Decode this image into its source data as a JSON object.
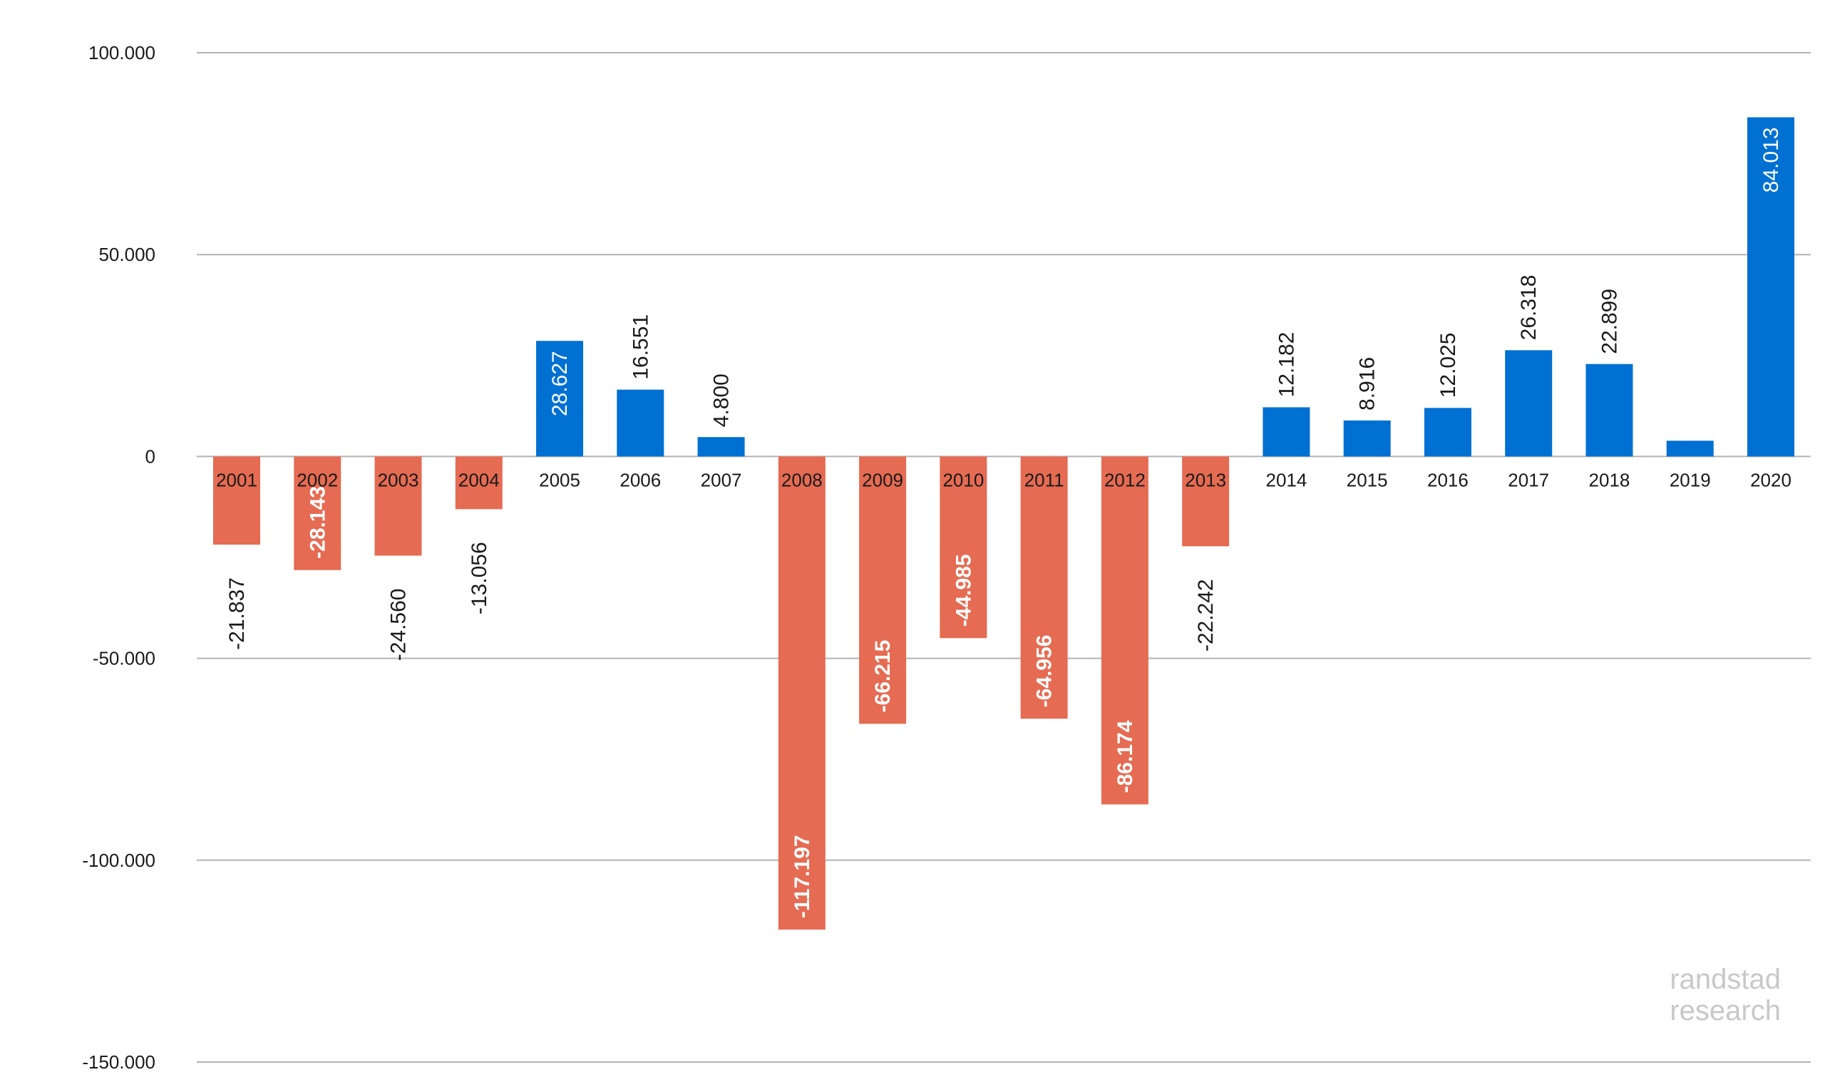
{
  "chart_data": {
    "type": "bar",
    "categories": [
      "2001",
      "2002",
      "2003",
      "2004",
      "2005",
      "2006",
      "2007",
      "2008",
      "2009",
      "2010",
      "2011",
      "2012",
      "2013",
      "2014",
      "2015",
      "2016",
      "2017",
      "2018",
      "2019",
      "2020"
    ],
    "values": [
      -21837,
      -28143,
      -24560,
      -13056,
      28627,
      16551,
      4800,
      -117197,
      -66215,
      -44985,
      -64956,
      -86174,
      -22242,
      12182,
      8916,
      12025,
      26318,
      22899,
      3900,
      84013
    ],
    "data_labels": [
      "-21.837",
      "-28.143",
      "-24.560",
      "-13.056",
      "28.627",
      "16.551",
      "4.800",
      "-117.197",
      "-66.215",
      "-44.985",
      "-64.956",
      "-86.174",
      "-22.242",
      "12.182",
      "8.916",
      "12.025",
      "26.318",
      "22.899",
      "",
      "84.013"
    ],
    "yticks": [
      100000,
      50000,
      0,
      -50000,
      -100000,
      -150000
    ],
    "ytick_labels": [
      "100.000",
      "50.000",
      "0",
      "-50.000",
      "-100.000",
      "-150.000"
    ],
    "ylim": [
      -150000,
      100000
    ],
    "grid": true,
    "colors": {
      "positive": "#0070d2",
      "negative": "#e56b52",
      "grid": "#b3b3b3",
      "text": "#1a1a1a"
    },
    "watermark": [
      "randstad",
      "research"
    ]
  }
}
